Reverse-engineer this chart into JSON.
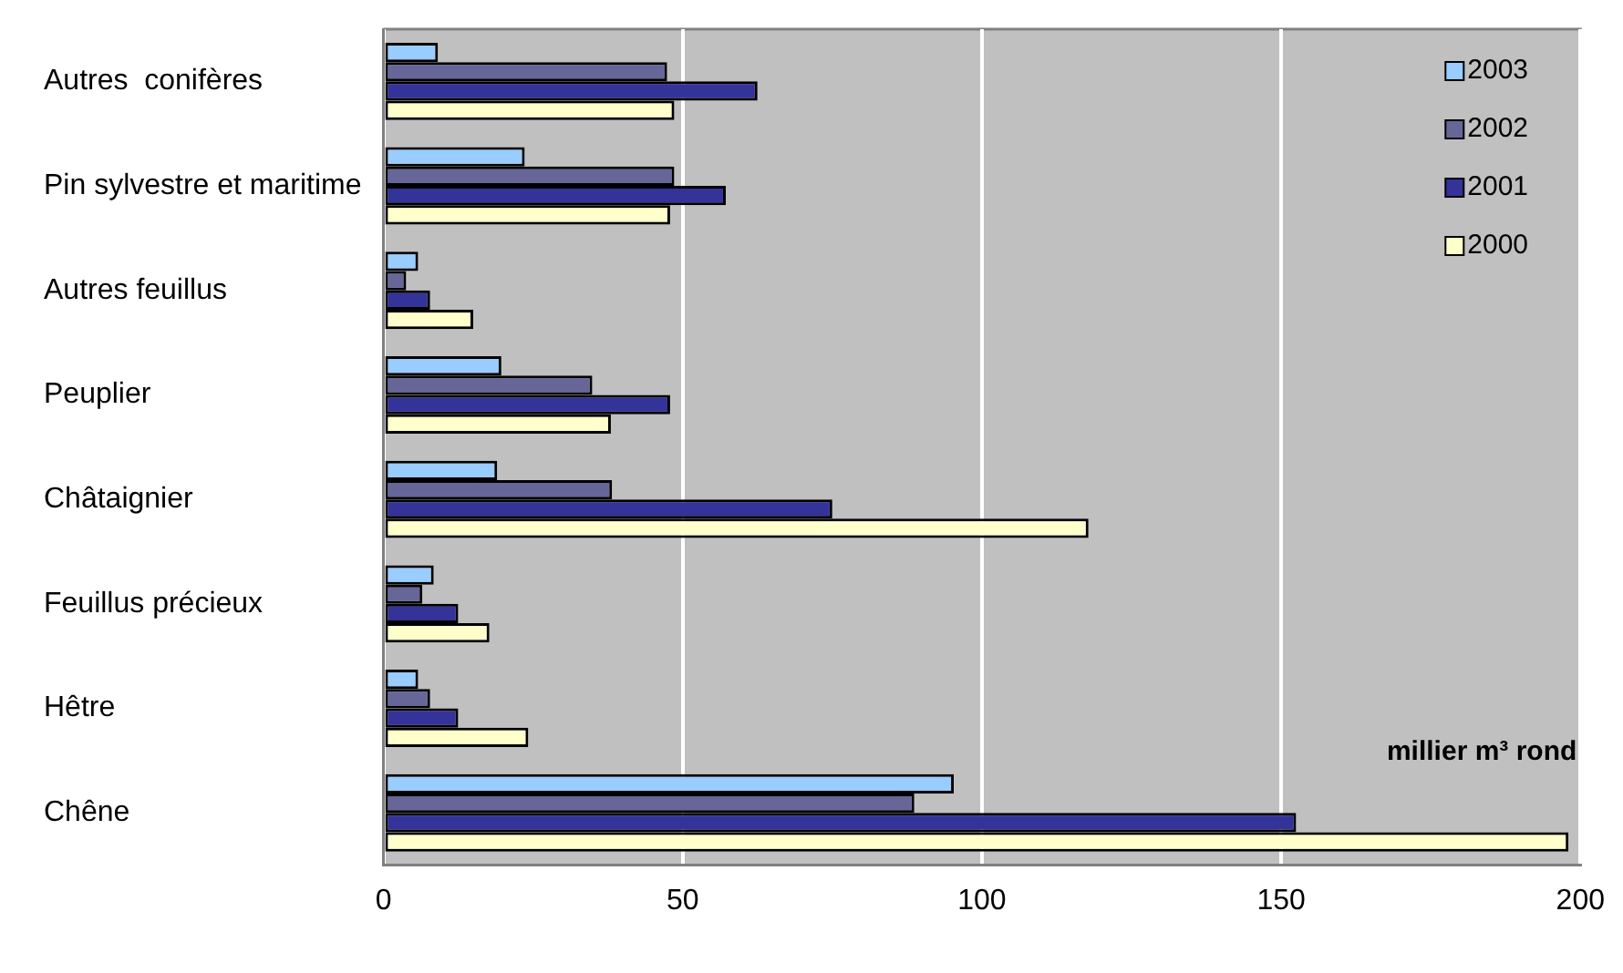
{
  "chart_data": {
    "type": "bar",
    "orientation": "horizontal",
    "categories": [
      "Autres  conifères",
      "Pin sylvestre et maritime",
      "Autres feuillus",
      "Peuplier",
      "Châtaignier",
      "Feuillus précieux",
      "Hêtre",
      "Chêne"
    ],
    "series": [
      {
        "name": "2003",
        "color": "#99ccff",
        "values": [
          9.1,
          23.6,
          5.8,
          19.7,
          19,
          8.4,
          5.8,
          95.3
        ]
      },
      {
        "name": "2002",
        "color": "#666699",
        "values": [
          47.4,
          48.6,
          3.8,
          34.9,
          38.2,
          6.5,
          7.8,
          88.7
        ]
      },
      {
        "name": "2001",
        "color": "#333399",
        "values": [
          62.5,
          57.2,
          7.8,
          47.9,
          75,
          12.5,
          12.5,
          152.5
        ]
      },
      {
        "name": "2000",
        "color": "#ffffcc",
        "values": [
          48.6,
          47.9,
          15,
          38,
          117.8,
          17.7,
          24.2,
          198
        ]
      }
    ],
    "xlim": [
      0,
      200
    ],
    "xticks": [
      0,
      50,
      100,
      150,
      200
    ],
    "grid": "x",
    "legend": "top right",
    "annotations": [
      "millier m³ rond"
    ]
  }
}
